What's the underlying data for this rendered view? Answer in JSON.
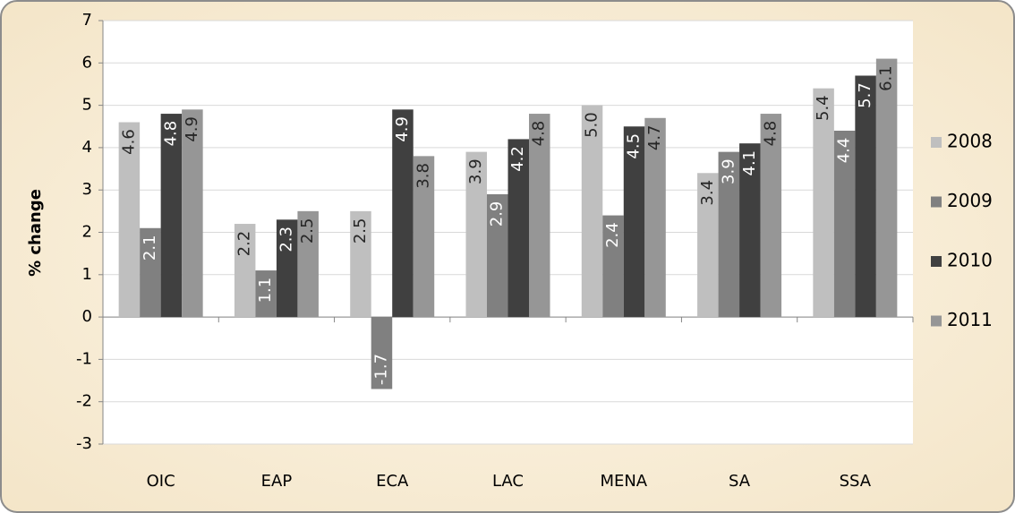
{
  "chart_data": {
    "type": "bar",
    "y_label": "% change",
    "categories": [
      "OIC",
      "EAP",
      "ECA",
      "LAC",
      "MENA",
      "SA",
      "SSA"
    ],
    "series": [
      {
        "name": "2008",
        "color": "#bfbfbf",
        "label_color": "#262626",
        "values": [
          4.6,
          2.2,
          2.5,
          3.9,
          5.0,
          3.4,
          5.4
        ],
        "value_labels": [
          "4.6",
          "2.2",
          "2.5",
          "3.9",
          "5.0",
          "3.4",
          "5.4"
        ]
      },
      {
        "name": "2009",
        "color": "#808080",
        "label_color": "#ffffff",
        "values": [
          2.1,
          1.1,
          -1.7,
          2.9,
          2.4,
          3.9,
          4.4
        ],
        "value_labels": [
          "2.1",
          "1.1",
          "-1.7",
          "2.9",
          "2.4",
          "3.9",
          "4.4"
        ]
      },
      {
        "name": "2010",
        "color": "#404040",
        "label_color": "#ffffff",
        "values": [
          4.8,
          2.3,
          4.9,
          4.2,
          4.5,
          4.1,
          5.7
        ],
        "value_labels": [
          "4.8",
          "2.3",
          "4.9",
          "4.2",
          "4.5",
          "4.1",
          "5.7"
        ]
      },
      {
        "name": "2011",
        "color": "#969696",
        "label_color": "#262626",
        "values": [
          4.9,
          2.5,
          3.8,
          4.8,
          4.7,
          4.8,
          6.1
        ],
        "value_labels": [
          "4.9",
          "2.5",
          "3.8",
          "4.8",
          "4.7",
          "4.8",
          "6.1"
        ]
      }
    ],
    "ylim": [
      -3,
      7
    ],
    "yticks": [
      -3,
      -2,
      -1,
      0,
      1,
      2,
      3,
      4,
      5,
      6,
      7
    ],
    "grid": true,
    "legend": "right"
  }
}
